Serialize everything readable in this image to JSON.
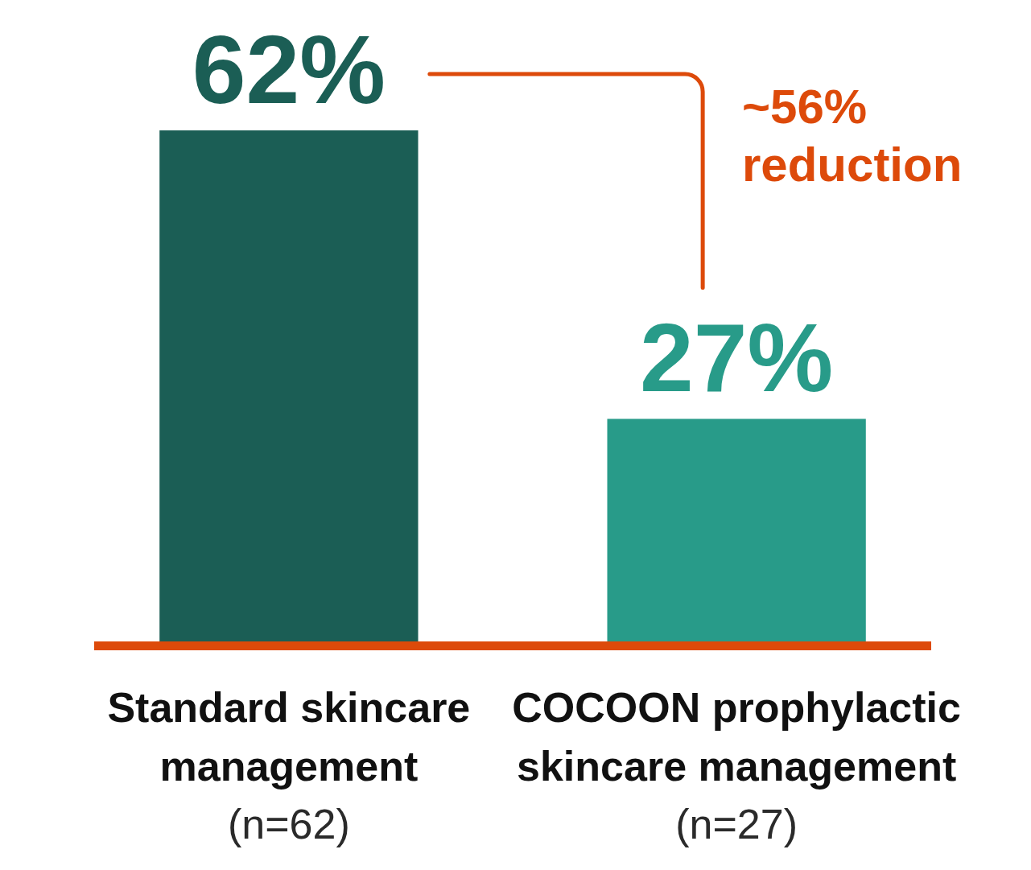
{
  "chart_data": {
    "type": "bar",
    "categories": [
      "Standard skincare\nmanagement\n(n=62)",
      "COCOON prophylactic\nskincare management\n(n=27)"
    ],
    "values": [
      62,
      27
    ],
    "colors": [
      "#1b5e55",
      "#289b89"
    ],
    "value_labels": [
      "62%",
      "27%"
    ],
    "annotations": [
      "~56%\nreduction"
    ]
  }
}
